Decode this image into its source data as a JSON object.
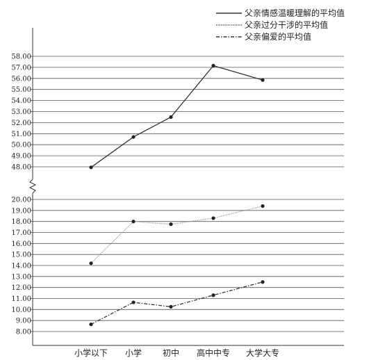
{
  "chart_data": {
    "type": "line",
    "categories": [
      "小学以下",
      "小学",
      "初中",
      "高中中专",
      "大学大专"
    ],
    "axis_break": true,
    "grid": true,
    "legend_position": "top-right",
    "y_ticks_upper": [
      "48.00",
      "49.00",
      "50.00",
      "51.00",
      "52.00",
      "53.00",
      "54.00",
      "55.00",
      "56.00",
      "57.00",
      "58.00"
    ],
    "y_ticks_lower": [
      "8.00",
      "9.00",
      "10.00",
      "11.00",
      "12.00",
      "13.00",
      "14.00",
      "15.00",
      "16.00",
      "17.00",
      "18.00",
      "19.00",
      "20.00"
    ],
    "series": [
      {
        "name": "父亲情感温暖理解的平均值",
        "values": [
          47.95,
          50.7,
          52.5,
          57.15,
          55.85
        ],
        "color": "#333333",
        "dash": "solid",
        "line_style": "solid",
        "segment": "upper"
      },
      {
        "name": "父亲过分干涉的平均值",
        "values": [
          14.2,
          18.0,
          17.75,
          18.3,
          19.4
        ],
        "color": "#999999",
        "dash": "dotted",
        "line_style": "dotted",
        "segment": "lower"
      },
      {
        "name": "父亲偏爱的平均值",
        "values": [
          8.65,
          10.65,
          10.25,
          11.3,
          12.5
        ],
        "color": "#333333",
        "dash": "dashdot",
        "line_style": "dash-dot",
        "segment": "lower"
      }
    ]
  }
}
